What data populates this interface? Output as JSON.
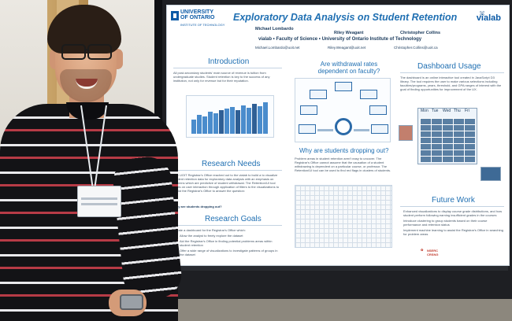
{
  "poster": {
    "title": "Exploratory Data Analysis on Student Retention",
    "university_logo": {
      "line1": "UNIVERSITY",
      "line2": "OF ONTARIO",
      "sub": "INSTITUTE OF TECHNOLOGY"
    },
    "lab_logo": "vialab",
    "authors": [
      {
        "name": "Michael Lombardo",
        "email": "Michael.Lombardo@uoit.net"
      },
      {
        "name": "Riley Weagant",
        "email": "Riley.Weagant@uoit.net"
      },
      {
        "name": "Christopher Collins",
        "email": "Christopher.Collins@uoit.ca"
      }
    ],
    "affiliation": "vialab  •  Faculty of Science  •  University of Ontario Institute of Technology",
    "sections": {
      "introduction": {
        "heading": "Introduction",
        "text": "All post-secondary students' main source of revenue is tuition from undergraduate studies. Student retention is key to the success of any institution, not only for revenue but for their reputation."
      },
      "withdrawal": {
        "heading": "Are withdrawal rates dependent on faculty?"
      },
      "dashboard": {
        "heading": "Dashboard Usage",
        "text": "The dashboard is an online interactive tool created in JavaScript D3 library. The tool requires the user to make various selections including faculties/programs, years, threshold, and GPA ranges of interest with the goal of finding opportunities for improvement of the UX."
      },
      "research_needs": {
        "heading": "Research Needs",
        "text": "The UOIT Registrar's Office reached out to the vialab to build a to visualize student retention data for exploratory data analysis with an emphasis on patterns which are predictive of student withdrawal. The Retention/UI tool relies on user interaction through application of filters to the visualizations to assist the Registrar's Office to answer the question:",
        "question": "Why are students dropping out?"
      },
      "why_dropping": {
        "heading": "Why are students dropping out?",
        "text": "Problem areas in student retention aren't easy to uncover. The Registrar's Office cannot assume that the causation of a student withdrawing is dependent on a particular course, or professor. The Retention/UI tool can be used to find red flags in clusters of students."
      },
      "research_goals": {
        "heading": "Research Goals",
        "intro": "Create a dashboard for the Registrar's Office which:",
        "items": [
          "Allow the analyst to freely explore the dataset",
          "Aid the Registrar's Office in finding potential problems areas within student retention",
          "Offer a wide range of visualizations to investigate patterns of groups in the dataset"
        ]
      },
      "future_work": {
        "heading": "Future Work",
        "items": [
          "Enhanced visualizations to display course grade distributions, and how student perform following earning insufficient grades in the courses",
          "Introduce clustering to group students based on their course performance and retention status",
          "Implement machine learning to assist the Registrar's Office in searching for problem areas"
        ]
      }
    },
    "figures": {
      "faculty_nodes": [
        "Engineering",
        "Health Science",
        "Science",
        "Business",
        "Education",
        "Social Science"
      ],
      "calendar_days": [
        "Mon",
        "Tue",
        "Wed",
        "Thu",
        "Fri"
      ]
    },
    "footer_logo": "NSERC CRSNG"
  },
  "colors": {
    "poster_bg": "#ffffff",
    "title_blue": "#1f6fb2",
    "logo_blue": "#0b5aa6",
    "chart_bar": "#4a8ccc",
    "chart_bar_dark": "#2f5f95",
    "board": "#1e1f23"
  },
  "icons": [
    "university-shield-icon",
    "vialab-logo-icon",
    "nserc-leaf-icon"
  ]
}
